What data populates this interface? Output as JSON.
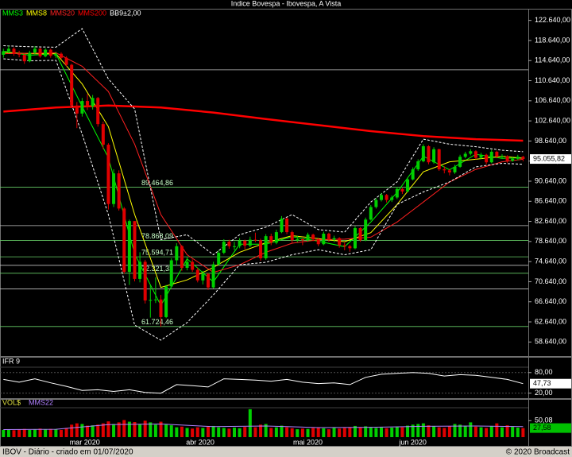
{
  "window_title": "Indice Bovespa - Ibovespa, A Vista",
  "footer": {
    "left": "IBOV - Diário - criado em 01/07/2020",
    "right": "© 2020 Broadcast"
  },
  "chart_data": [
    {
      "type": "candlestick",
      "xlim": [
        -0.5,
        100
      ],
      "xticks": [
        {
          "value": 15.5,
          "label": "mar 2020"
        },
        {
          "value": 37.5,
          "label": "abr 2020"
        },
        {
          "value": 58,
          "label": "mai 2020"
        },
        {
          "value": 78,
          "label": "jun 2020"
        }
      ],
      "ylim": [
        56000,
        124800
      ],
      "yticks": [
        {
          "value": 58640,
          "label": "58.640,00"
        },
        {
          "value": 62640,
          "label": "62.640,00"
        },
        {
          "value": 66640,
          "label": "66.640,00"
        },
        {
          "value": 70640,
          "label": "70.640,00"
        },
        {
          "value": 74640,
          "label": "74.640,00"
        },
        {
          "value": 78640,
          "label": "78.640,00"
        },
        {
          "value": 82640,
          "label": "82.640,00"
        },
        {
          "value": 86640,
          "label": "86.640,00"
        },
        {
          "value": 90640,
          "label": "90.640,00"
        },
        {
          "value": 94640,
          "label": "94.640,00"
        },
        {
          "value": 98640,
          "label": "98.640,00"
        },
        {
          "value": 102640,
          "label": "102.640,00"
        },
        {
          "value": 106640,
          "label": "106.640,00"
        },
        {
          "value": 110640,
          "label": "110.640,00"
        },
        {
          "value": 114640,
          "label": "114.640,00"
        },
        {
          "value": 118640,
          "label": "118.640,00"
        },
        {
          "value": 122640,
          "label": "122.640,00"
        }
      ],
      "up_color": "#00d000",
      "down_color": "#e00000",
      "candles": [
        [
          115800,
          117000,
          115200,
          116500
        ],
        [
          116500,
          117600,
          116100,
          117000
        ],
        [
          117000,
          117300,
          115600,
          116000
        ],
        [
          116000,
          116600,
          115300,
          115800
        ],
        [
          115800,
          116000,
          114000,
          114500
        ],
        [
          114500,
          116600,
          114300,
          116200
        ],
        [
          116200,
          117500,
          115900,
          117000
        ],
        [
          117000,
          117200,
          115200,
          115500
        ],
        [
          115500,
          117100,
          115300,
          116800
        ],
        [
          116800,
          117000,
          115200,
          115600
        ],
        [
          115600,
          116400,
          115100,
          116000
        ],
        [
          116000,
          116300,
          114900,
          115200
        ],
        [
          115200,
          115500,
          113500,
          113800
        ],
        [
          113800,
          114000,
          105200,
          105700
        ],
        [
          105700,
          106400,
          101200,
          104100
        ],
        [
          104100,
          107200,
          103500,
          106600
        ],
        [
          106600,
          108000,
          104800,
          105500
        ],
        [
          105500,
          107800,
          104900,
          107200
        ],
        [
          107200,
          107400,
          101500,
          102000
        ],
        [
          102000,
          102500,
          97000,
          97900
        ],
        [
          97900,
          98200,
          85000,
          86100
        ],
        [
          86100,
          93000,
          85500,
          92200
        ],
        [
          92200,
          92800,
          84800,
          85200
        ],
        [
          85200,
          85500,
          72200,
          72600
        ],
        [
          72600,
          83000,
          70000,
          82700
        ],
        [
          82700,
          82700,
          70700,
          71200
        ],
        [
          71200,
          76500,
          70500,
          74600
        ],
        [
          74600,
          75000,
          66300,
          66900
        ],
        [
          66900,
          70100,
          63500,
          67000
        ],
        [
          67000,
          71500,
          66400,
          67100
        ],
        [
          67100,
          68000,
          61700,
          63600
        ],
        [
          63600,
          70000,
          63400,
          69700
        ],
        [
          69700,
          75300,
          69500,
          74900
        ],
        [
          74900,
          78300,
          73800,
          77700
        ],
        [
          77700,
          77900,
          72800,
          73400
        ],
        [
          73400,
          75600,
          72900,
          74600
        ],
        [
          74600,
          75100,
          72600,
          73000
        ],
        [
          73000,
          73400,
          70500,
          70900
        ],
        [
          70900,
          72800,
          70100,
          72200
        ],
        [
          72200,
          72400,
          69000,
          69500
        ],
        [
          69500,
          74600,
          69300,
          74100
        ],
        [
          74100,
          76900,
          73800,
          76400
        ],
        [
          76400,
          79100,
          76100,
          78600
        ],
        [
          78600,
          79000,
          77200,
          77700
        ],
        [
          77700,
          78600,
          76900,
          77700
        ],
        [
          77700,
          79300,
          77300,
          78800
        ],
        [
          78800,
          79000,
          77100,
          77800
        ],
        [
          77800,
          79600,
          77500,
          79000
        ],
        [
          79000,
          80400,
          78500,
          78900
        ],
        [
          78900,
          79200,
          74800,
          75300
        ],
        [
          75300,
          80100,
          75000,
          79700
        ],
        [
          79700,
          80200,
          77900,
          78400
        ],
        [
          78400,
          81000,
          78100,
          80500
        ],
        [
          80500,
          83700,
          80300,
          83200
        ],
        [
          83200,
          83400,
          80100,
          80500
        ],
        [
          80500,
          80800,
          78400,
          78900
        ],
        [
          78900,
          79800,
          78500,
          79100
        ],
        [
          79100,
          79300,
          77900,
          78900
        ],
        [
          78900,
          80400,
          78600,
          80000
        ],
        [
          80000,
          80200,
          78700,
          79100
        ],
        [
          79100,
          79400,
          77700,
          78100
        ],
        [
          78100,
          80600,
          77900,
          80200
        ],
        [
          80200,
          80400,
          78600,
          79000
        ],
        [
          79000,
          79800,
          78500,
          79300
        ],
        [
          79300,
          79500,
          77400,
          77900
        ],
        [
          77900,
          78400,
          76900,
          77700
        ],
        [
          77700,
          78000,
          76600,
          77300
        ],
        [
          77300,
          81700,
          77100,
          81300
        ],
        [
          81300,
          81500,
          78600,
          78900
        ],
        [
          78900,
          83400,
          78700,
          83000
        ],
        [
          83000,
          85900,
          82800,
          85500
        ],
        [
          85500,
          87300,
          85200,
          86900
        ],
        [
          86900,
          88300,
          86600,
          87900
        ],
        [
          87900,
          88100,
          86400,
          86900
        ],
        [
          86900,
          87800,
          86500,
          87400
        ],
        [
          87400,
          89500,
          87100,
          89100
        ],
        [
          89100,
          89300,
          88100,
          88600
        ],
        [
          88600,
          91400,
          88400,
          91000
        ],
        [
          91000,
          93400,
          90800,
          93000
        ],
        [
          93000,
          95000,
          92700,
          94600
        ],
        [
          94600,
          98000,
          94400,
          97600
        ],
        [
          97600,
          97800,
          94000,
          94400
        ],
        [
          94400,
          97400,
          94100,
          97000
        ],
        [
          97000,
          97100,
          92700,
          93000
        ],
        [
          93000,
          93600,
          92200,
          92800
        ],
        [
          92800,
          93100,
          91800,
          92400
        ],
        [
          92400,
          93900,
          92100,
          93500
        ],
        [
          93500,
          95900,
          93300,
          95500
        ],
        [
          95500,
          96500,
          95200,
          96100
        ],
        [
          96100,
          97000,
          95800,
          96600
        ],
        [
          96600,
          96800,
          95000,
          95300
        ],
        [
          95300,
          96300,
          95000,
          95900
        ],
        [
          95900,
          96100,
          94000,
          94400
        ],
        [
          94400,
          96900,
          94200,
          96500
        ],
        [
          96500,
          96700,
          95200,
          95500
        ],
        [
          95500,
          96000,
          95100,
          95600
        ],
        [
          95600,
          95800,
          94300,
          94700
        ],
        [
          94700,
          95400,
          94500,
          95100
        ],
        [
          95100,
          95900,
          94800,
          95500
        ],
        [
          95500,
          95700,
          94600,
          95055.82
        ]
      ],
      "last_label": "95.055,82",
      "series": [
        {
          "name": "MMS3",
          "color": "#00ff00",
          "x": [
            0,
            5,
            10,
            15,
            20,
            25,
            30,
            35,
            40,
            45,
            50,
            55,
            60,
            65,
            70,
            75,
            80,
            85,
            90,
            95,
            99
          ],
          "values": [
            116500,
            115700,
            116000,
            105500,
            95300,
            76200,
            65900,
            75200,
            70600,
            78100,
            78100,
            79600,
            78700,
            77600,
            82500,
            88400,
            95600,
            92900,
            96000,
            95200,
            95300
          ]
        },
        {
          "name": "MMS8",
          "color": "#ffff00",
          "x": [
            0,
            5,
            10,
            15,
            20,
            25,
            30,
            35,
            40,
            45,
            50,
            55,
            60,
            65,
            70,
            75,
            80,
            85,
            90,
            95,
            99
          ],
          "values": [
            116300,
            116000,
            116000,
            110000,
            101500,
            84000,
            69500,
            71000,
            73500,
            76500,
            78400,
            79800,
            79200,
            78600,
            80400,
            86000,
            92500,
            94500,
            95000,
            95600,
            95200
          ]
        },
        {
          "name": "MMS20",
          "color": "#ff2020",
          "x": [
            0,
            5,
            10,
            15,
            20,
            25,
            30,
            35,
            40,
            45,
            50,
            55,
            60,
            65,
            70,
            75,
            80,
            85,
            90,
            95,
            99
          ],
          "values": [
            116000,
            116100,
            116200,
            113500,
            108500,
            98000,
            84000,
            76000,
            72500,
            74000,
            76500,
            78300,
            79000,
            79100,
            79500,
            82500,
            86500,
            90500,
            93000,
            94500,
            95000
          ]
        },
        {
          "name": "MMS200",
          "color": "#ff0000",
          "width": 2.5,
          "x": [
            0,
            10,
            20,
            30,
            40,
            50,
            60,
            70,
            80,
            90,
            99
          ],
          "values": [
            104500,
            105300,
            105700,
            105300,
            104300,
            103000,
            101800,
            100600,
            99600,
            99000,
            98700
          ]
        },
        {
          "name": "BB9±2,00",
          "color": "#ffffff",
          "dashed": true,
          "x": [
            0,
            5,
            10,
            15,
            20,
            25,
            30,
            35,
            40,
            45,
            50,
            55,
            60,
            65,
            70,
            75,
            80,
            85,
            90,
            95,
            99
          ],
          "values": [
            117600,
            117400,
            117300,
            121000,
            111000,
            105000,
            79000,
            80000,
            76000,
            80000,
            81500,
            84000,
            81000,
            80500,
            86500,
            90500,
            99000,
            98000,
            97500,
            96800,
            96500
          ],
          "lower": [
            115000,
            114600,
            114700,
            100000,
            84000,
            62000,
            59000,
            62500,
            68000,
            74000,
            74500,
            76000,
            77000,
            76000,
            77000,
            86000,
            88500,
            90500,
            93500,
            94200,
            94000
          ]
        }
      ],
      "levels": [
        {
          "value": 112800,
          "color": "#c0c0c0"
        },
        {
          "value": 81800,
          "color": "#c0c0c0"
        },
        {
          "value": 73900,
          "color": "#c0c0c0"
        },
        {
          "value": 69200,
          "color": "#c0c0c0"
        },
        {
          "value": 89464.86,
          "label": "89.464,86",
          "color": "#66cc66"
        },
        {
          "value": 78868.09,
          "label": "78.868,09",
          "color": "#66cc66"
        },
        {
          "value": 75594.71,
          "label": "75.594,71",
          "color": "#66cc66"
        },
        {
          "value": 72321.33,
          "label": "72.321,33",
          "color": "#66cc66"
        },
        {
          "value": 61724.46,
          "label": "61.724,46",
          "color": "#66cc66"
        }
      ]
    },
    {
      "type": "line",
      "title": "IFR 9",
      "color": "#ffffff",
      "ylim": [
        10,
        105
      ],
      "yticks": [
        {
          "value": 80,
          "label": "80,00"
        },
        {
          "value": 20,
          "label": "20,00"
        }
      ],
      "x": [
        0,
        3,
        6,
        9,
        12,
        15,
        18,
        21,
        24,
        27,
        30,
        33,
        36,
        39,
        42,
        45,
        48,
        51,
        54,
        57,
        60,
        63,
        66,
        69,
        72,
        75,
        78,
        81,
        84,
        87,
        90,
        93,
        96,
        99
      ],
      "values": [
        60,
        52,
        62,
        50,
        40,
        28,
        30,
        25,
        30,
        22,
        20,
        45,
        42,
        38,
        62,
        60,
        58,
        55,
        60,
        52,
        48,
        50,
        45,
        66,
        75,
        78,
        80,
        78,
        70,
        74,
        72,
        66,
        60,
        47.73
      ],
      "last_label": "47,73"
    },
    {
      "type": "bar",
      "title": "VOL$",
      "ylim": [
        0,
        92
      ],
      "yticks": [
        {
          "value": 50.08,
          "label": "50,08"
        }
      ],
      "values": [
        22,
        24,
        21,
        23,
        25,
        22,
        24,
        26,
        23,
        25,
        24,
        22,
        28,
        38,
        42,
        40,
        35,
        36,
        38,
        42,
        48,
        40,
        45,
        52,
        47,
        46,
        40,
        50,
        45,
        38,
        47,
        40,
        36,
        30,
        32,
        28,
        26,
        30,
        28,
        32,
        34,
        30,
        28,
        26,
        29,
        27,
        31,
        85,
        30,
        38,
        40,
        28,
        30,
        35,
        30,
        27,
        24,
        26,
        25,
        28,
        30,
        27,
        24,
        29,
        26,
        28,
        30,
        34,
        29,
        33,
        31,
        28,
        30,
        27,
        29,
        32,
        30,
        35,
        38,
        40,
        42,
        36,
        34,
        30,
        28,
        33,
        40,
        38,
        35,
        45,
        32,
        30,
        28,
        34,
        42,
        30,
        36,
        33,
        29,
        27.58
      ],
      "last_label": "27,58",
      "series": [
        {
          "name": "MMS22",
          "color": "#b080ff",
          "x": [
            0,
            10,
            20,
            30,
            40,
            50,
            60,
            70,
            80,
            90,
            99
          ],
          "values": [
            23,
            24,
            38,
            40,
            32,
            34,
            29,
            30,
            33,
            34,
            32
          ]
        }
      ]
    }
  ]
}
